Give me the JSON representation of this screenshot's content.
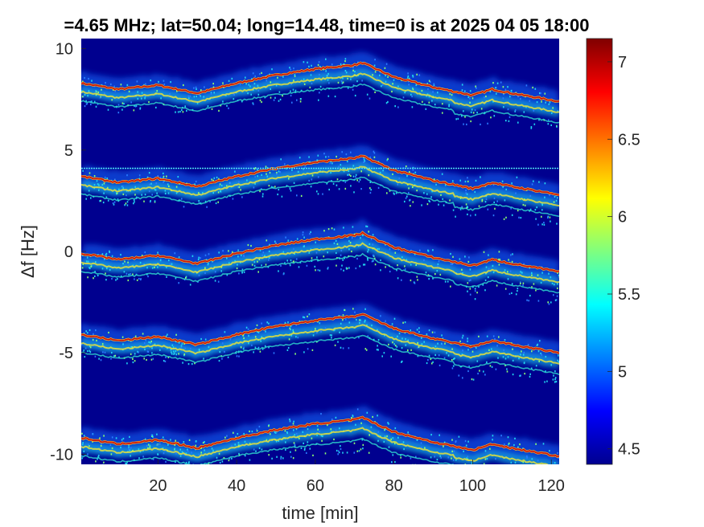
{
  "chart_data": {
    "type": "heatmap",
    "title": "=4.65 MHz;  lat=50.04; long=14.48, time=0 is at 2025 04 05 18:00",
    "xlabel": "time [min]",
    "ylabel": "Δf [Hz]",
    "xlim": [
      0.5,
      122
    ],
    "ylim": [
      -10.5,
      10.5
    ],
    "xticks": [
      20,
      40,
      60,
      80,
      100,
      120
    ],
    "xtick_labels": [
      "20",
      "40",
      "60",
      "80",
      "100",
      "120"
    ],
    "yticks": [
      10,
      5,
      0,
      -5,
      -10
    ],
    "ytick_labels": [
      "10",
      "5",
      "0",
      "-5",
      "-10"
    ],
    "colorbar": {
      "colormap": "jet",
      "range": [
        4.4,
        7.15
      ],
      "ticks": [
        4.5,
        5,
        5.5,
        6,
        6.5,
        7
      ],
      "tick_labels": [
        "4.5",
        "5",
        "5.5",
        "6",
        "6.5",
        "7"
      ]
    },
    "background_color": "#00008f",
    "horizontal_line": {
      "y": 4.1,
      "color": "#4fe0f0"
    },
    "traces": [
      {
        "offset": 8.2
      },
      {
        "offset": 3.6
      },
      {
        "offset": -0.2
      },
      {
        "offset": -4.2
      },
      {
        "offset": -9.3
      }
    ],
    "trace_shape": {
      "t": [
        0.5,
        10,
        20,
        30,
        40,
        50,
        60,
        70,
        72,
        80,
        90,
        100,
        105,
        110,
        122
      ],
      "df": [
        0.1,
        -0.2,
        0.0,
        -0.4,
        0.1,
        0.5,
        0.8,
        1.0,
        1.1,
        0.4,
        -0.1,
        -0.5,
        -0.2,
        -0.4,
        -0.8
      ]
    }
  }
}
